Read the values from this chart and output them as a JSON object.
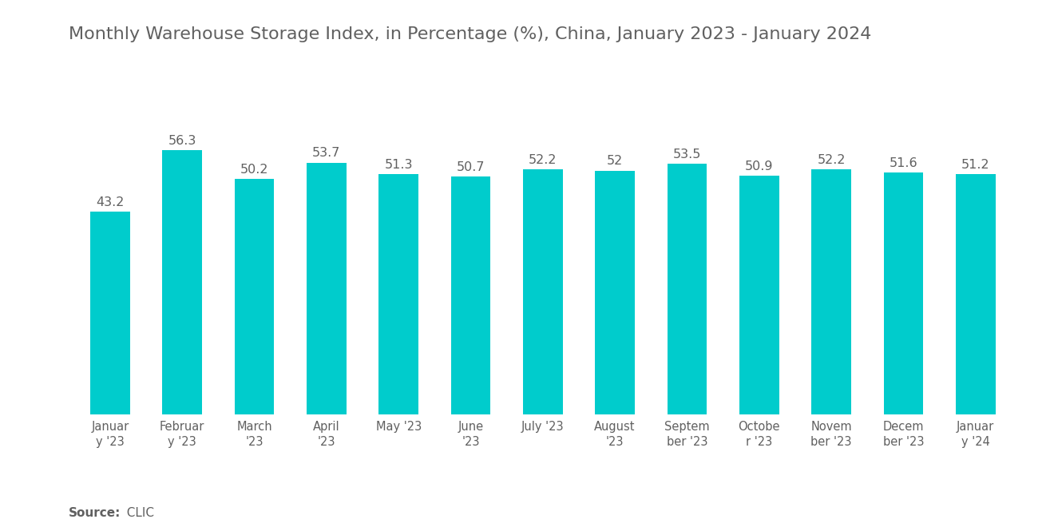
{
  "title": "Monthly Warehouse Storage Index, in Percentage (%), China, January 2023 - January 2024",
  "categories": [
    "Januar\ny '23",
    "Februar\ny '23",
    "March\n'23",
    "April\n'23",
    "May '23",
    "June\n'23",
    "July '23",
    "August\n'23",
    "Septem\nber '23",
    "Octobe\nr '23",
    "Novem\nber '23",
    "Decem\nber '23",
    "Januar\ny '24"
  ],
  "values": [
    43.2,
    56.3,
    50.2,
    53.7,
    51.3,
    50.7,
    52.2,
    52.0,
    53.5,
    50.9,
    52.2,
    51.6,
    51.2
  ],
  "bar_color": "#00CCCC",
  "title_color": "#606060",
  "label_color": "#606060",
  "tick_color": "#606060",
  "source_bold": "Source:",
  "source_text": "  CLIC",
  "background_color": "#ffffff",
  "ylim": [
    0,
    68
  ],
  "title_fontsize": 16,
  "label_fontsize": 10.5,
  "value_fontsize": 11.5,
  "source_fontsize": 11,
  "bar_width": 0.55
}
